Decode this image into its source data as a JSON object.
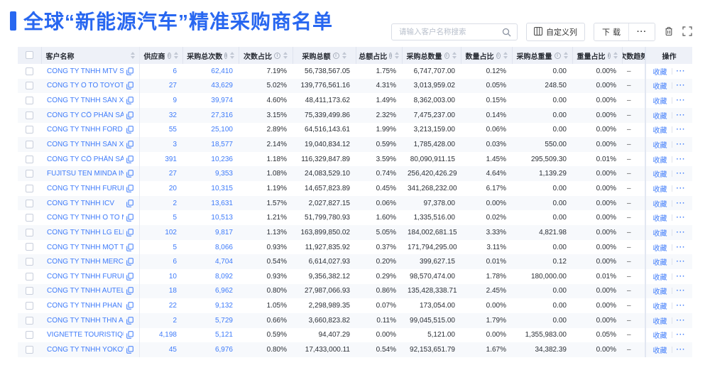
{
  "page": {
    "title": "全球“新能源汽车”精准采购商名单"
  },
  "colors": {
    "accent": "#2867f0",
    "link": "#3e7bfa",
    "header_bg": "#eef1f8",
    "stripe": "#f7f9fc"
  },
  "toolbar": {
    "search_placeholder": "请输入客户名称搜索",
    "customize_columns_label": "自定义列",
    "download_label": "下载",
    "more_label": "···",
    "icons": [
      "search-icon",
      "customize-columns-icon",
      "ellipsis-icon",
      "trash-icon",
      "fullscreen-icon"
    ]
  },
  "table": {
    "columns": [
      {
        "key": "name",
        "label": "客户名称",
        "info": false,
        "sort": true
      },
      {
        "key": "suppliers",
        "label": "供应商",
        "info": true,
        "sort": true
      },
      {
        "key": "purchase_count",
        "label": "采购总次数",
        "info": true,
        "sort": true
      },
      {
        "key": "count_pct",
        "label": "次数占比",
        "info": true,
        "sort": true
      },
      {
        "key": "total_amount",
        "label": "采购总额",
        "info": true,
        "sort": true
      },
      {
        "key": "amount_pct",
        "label": "总额占比",
        "info": true,
        "sort": true
      },
      {
        "key": "total_qty",
        "label": "采购总数量",
        "info": true,
        "sort": true
      },
      {
        "key": "qty_pct",
        "label": "数量占比",
        "info": true,
        "sort": true
      },
      {
        "key": "total_weight",
        "label": "采购总重量",
        "info": true,
        "sort": true
      },
      {
        "key": "weight_pct",
        "label": "重量占比",
        "info": true,
        "sort": true
      },
      {
        "key": "trend",
        "label": "次数趋势",
        "info": false,
        "sort": false
      },
      {
        "key": "actions",
        "label": "操作",
        "info": false,
        "sort": false
      }
    ],
    "actions": {
      "favorite_label": "收藏",
      "more_label": "···"
    },
    "rows": [
      {
        "name": "CÔNG TY TNHH MTV SẢN XUẤ...",
        "suppliers": "6",
        "purchase_count": "62,410",
        "count_pct": "7.19%",
        "total_amount": "56,738,567.05",
        "amount_pct": "1.75%",
        "total_qty": "6,747,707.00",
        "qty_pct": "0.12%",
        "total_weight": "0.00",
        "weight_pct": "0.00%",
        "trend": "–"
      },
      {
        "name": "CÔNG TY Ô TÔ TOYOTA VIỆT ...",
        "suppliers": "27",
        "purchase_count": "43,629",
        "count_pct": "5.02%",
        "total_amount": "139,776,561.16",
        "amount_pct": "4.31%",
        "total_qty": "3,013,959.02",
        "qty_pct": "0.05%",
        "total_weight": "248.50",
        "weight_pct": "0.00%",
        "trend": "–"
      },
      {
        "name": "CÔNG TY TNHH SẢN XUẤT VÀ ...",
        "suppliers": "9",
        "purchase_count": "39,974",
        "count_pct": "4.60%",
        "total_amount": "48,411,173.62",
        "amount_pct": "1.49%",
        "total_qty": "8,362,003.00",
        "qty_pct": "0.15%",
        "total_weight": "0.00",
        "weight_pct": "0.00%",
        "trend": "–"
      },
      {
        "name": "CÔNG TY CỔ PHẦN SẢN XUẤT...",
        "suppliers": "32",
        "purchase_count": "27,316",
        "count_pct": "3.15%",
        "total_amount": "75,339,499.86",
        "amount_pct": "2.32%",
        "total_qty": "7,475,237.00",
        "qty_pct": "0.14%",
        "total_weight": "0.00",
        "weight_pct": "0.00%",
        "trend": "–"
      },
      {
        "name": "CÔNG TY TNHH FORD VIỆT NAM",
        "suppliers": "55",
        "purchase_count": "25,100",
        "count_pct": "2.89%",
        "total_amount": "64,516,143.61",
        "amount_pct": "1.99%",
        "total_qty": "3,213,159.00",
        "qty_pct": "0.06%",
        "total_weight": "0.00",
        "weight_pct": "0.00%",
        "trend": "–"
      },
      {
        "name": "CÔNG TY TNHH SẢN XUẤT VÀ ...",
        "suppliers": "3",
        "purchase_count": "18,577",
        "count_pct": "2.14%",
        "total_amount": "19,040,834.12",
        "amount_pct": "0.59%",
        "total_qty": "1,785,428.00",
        "qty_pct": "0.03%",
        "total_weight": "550.00",
        "weight_pct": "0.00%",
        "trend": "–"
      },
      {
        "name": "CÔNG TY CỔ PHẦN SẢN XUẤT...",
        "suppliers": "391",
        "purchase_count": "10,236",
        "count_pct": "1.18%",
        "total_amount": "116,329,847.89",
        "amount_pct": "3.59%",
        "total_qty": "80,090,911.15",
        "qty_pct": "1.45%",
        "total_weight": "295,509.30",
        "weight_pct": "0.01%",
        "trend": "–"
      },
      {
        "name": "FUJITSU TEN MINDA INDIA PVT...",
        "suppliers": "27",
        "purchase_count": "9,353",
        "count_pct": "1.08%",
        "total_amount": "24,083,529.10",
        "amount_pct": "0.74%",
        "total_qty": "256,420,426.29",
        "qty_pct": "4.64%",
        "total_weight": "1,139.29",
        "weight_pct": "0.00%",
        "trend": "–"
      },
      {
        "name": "CÔNG TY TNHH FURUKAWA A...",
        "suppliers": "20",
        "purchase_count": "10,315",
        "count_pct": "1.19%",
        "total_amount": "14,657,823.89",
        "amount_pct": "0.45%",
        "total_qty": "341,268,232.00",
        "qty_pct": "6.17%",
        "total_weight": "0.00",
        "weight_pct": "0.00%",
        "trend": "–"
      },
      {
        "name": "CÔNG TY TNHH ICV",
        "suppliers": "2",
        "purchase_count": "13,631",
        "count_pct": "1.57%",
        "total_amount": "2,027,827.15",
        "amount_pct": "0.06%",
        "total_qty": "97,378.00",
        "qty_pct": "0.00%",
        "total_weight": "0.00",
        "weight_pct": "0.00%",
        "trend": "–"
      },
      {
        "name": "CÔNG TY TNHH Ô TÔ MITSUBI...",
        "suppliers": "5",
        "purchase_count": "10,513",
        "count_pct": "1.21%",
        "total_amount": "51,799,780.93",
        "amount_pct": "1.60%",
        "total_qty": "1,335,516.00",
        "qty_pct": "0.02%",
        "total_weight": "0.00",
        "weight_pct": "0.00%",
        "trend": "–"
      },
      {
        "name": "CÔNG TY TNHH LG ELECTRON...",
        "suppliers": "102",
        "purchase_count": "9,817",
        "count_pct": "1.13%",
        "total_amount": "163,899,850.02",
        "amount_pct": "5.05%",
        "total_qty": "184,002,681.15",
        "qty_pct": "3.33%",
        "total_weight": "4,821.98",
        "weight_pct": "0.00%",
        "trend": "–"
      },
      {
        "name": "CÔNG TY TNHH MỘT THÀNH V...",
        "suppliers": "5",
        "purchase_count": "8,066",
        "count_pct": "0.93%",
        "total_amount": "11,927,835.92",
        "amount_pct": "0.37%",
        "total_qty": "171,794,295.00",
        "qty_pct": "3.11%",
        "total_weight": "0.00",
        "weight_pct": "0.00%",
        "trend": "–"
      },
      {
        "name": "CÔNG TY TNHH MERCEDES-B...",
        "suppliers": "6",
        "purchase_count": "4,704",
        "count_pct": "0.54%",
        "total_amount": "6,614,027.93",
        "amount_pct": "0.20%",
        "total_qty": "399,627.15",
        "qty_pct": "0.01%",
        "total_weight": "0.12",
        "weight_pct": "0.00%",
        "trend": "–"
      },
      {
        "name": "CÔNG TY TNHH FURUKAWA A...",
        "suppliers": "10",
        "purchase_count": "8,092",
        "count_pct": "0.93%",
        "total_amount": "9,356,382.12",
        "amount_pct": "0.29%",
        "total_qty": "98,570,474.00",
        "qty_pct": "1.78%",
        "total_weight": "180,000.00",
        "weight_pct": "0.01%",
        "trend": "–"
      },
      {
        "name": "CÔNG TY TNHH AUTEL VIỆT N...",
        "suppliers": "18",
        "purchase_count": "6,962",
        "count_pct": "0.80%",
        "total_amount": "27,987,066.93",
        "amount_pct": "0.86%",
        "total_qty": "135,428,338.71",
        "qty_pct": "2.45%",
        "total_weight": "0.00",
        "weight_pct": "0.00%",
        "trend": "–"
      },
      {
        "name": "CÔNG TY TNHH PHÂN PHỐI T...",
        "suppliers": "22",
        "purchase_count": "9,132",
        "count_pct": "1.05%",
        "total_amount": "2,298,989.35",
        "amount_pct": "0.07%",
        "total_qty": "173,054.00",
        "qty_pct": "0.00%",
        "total_weight": "0.00",
        "weight_pct": "0.00%",
        "trend": "–"
      },
      {
        "name": "CÔNG TY TNHH THN AUTOPAR...",
        "suppliers": "2",
        "purchase_count": "5,729",
        "count_pct": "0.66%",
        "total_amount": "3,660,823.82",
        "amount_pct": "0.11%",
        "total_qty": "99,045,515.00",
        "qty_pct": "1.79%",
        "total_weight": "0.00",
        "weight_pct": "0.00%",
        "trend": "–"
      },
      {
        "name": "VIGNETTE TOURISTIQUE G UNI...",
        "suppliers": "4,198",
        "purchase_count": "5,121",
        "count_pct": "0.59%",
        "total_amount": "94,407.29",
        "amount_pct": "0.00%",
        "total_qty": "5,121.00",
        "qty_pct": "0.00%",
        "total_weight": "1,355,983.00",
        "weight_pct": "0.05%",
        "trend": "–"
      },
      {
        "name": "CÔNG TY TNHH YOKOWO VIỆT...",
        "suppliers": "45",
        "purchase_count": "6,976",
        "count_pct": "0.80%",
        "total_amount": "17,433,000.11",
        "amount_pct": "0.54%",
        "total_qty": "92,153,651.79",
        "qty_pct": "1.67%",
        "total_weight": "34,382.39",
        "weight_pct": "0.00%",
        "trend": "–"
      }
    ]
  }
}
